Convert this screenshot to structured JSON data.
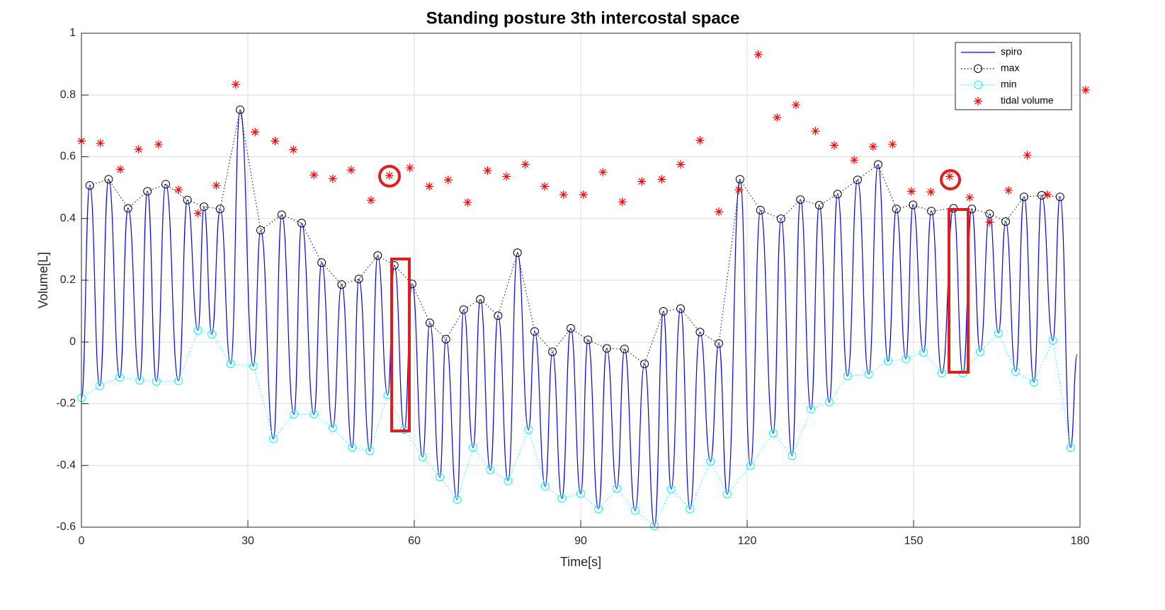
{
  "chart_data": {
    "type": "line",
    "title": "Standing posture 3th intercostal space",
    "xlabel": "Time[s]",
    "ylabel": "Volume[L]",
    "xlim": [
      0,
      180
    ],
    "ylim": [
      -0.6,
      1
    ],
    "xticks": [
      0,
      30,
      60,
      90,
      120,
      150,
      180
    ],
    "yticks": [
      -0.6,
      -0.4,
      -0.2,
      0,
      0.2,
      0.4,
      0.6,
      0.8,
      1
    ],
    "grid": true,
    "legend": "northeast",
    "series": [
      {
        "name": "spiro",
        "color": "#0000ff",
        "line": "solid",
        "marker": "none",
        "x": [
          0.0,
          1.5,
          3.3,
          4.9,
          6.9,
          8.4,
          10.5,
          11.9,
          13.5,
          15.2,
          17.5,
          19.1,
          21.0,
          22.1,
          23.5,
          25.0,
          26.9,
          28.6,
          31.0,
          32.3,
          34.6,
          36.1,
          38.3,
          39.7,
          41.9,
          43.3,
          45.3,
          46.9,
          48.8,
          50.0,
          52.0,
          53.4,
          55.2,
          56.4,
          58.2,
          59.6,
          61.5,
          62.8,
          64.6,
          65.7,
          67.7,
          68.9,
          70.6,
          71.9,
          73.7,
          75.1,
          76.9,
          78.6,
          80.6,
          81.7,
          83.6,
          84.9,
          86.6,
          88.2,
          90.0,
          91.3,
          93.2,
          94.7,
          96.5,
          97.9,
          99.8,
          101.5,
          103.3,
          104.9,
          106.3,
          108.0,
          109.7,
          111.5,
          113.4,
          114.9,
          116.4,
          118.7,
          120.6,
          122.4,
          124.7,
          126.1,
          128.1,
          129.6,
          131.5,
          133.0,
          134.8,
          136.3,
          138.1,
          139.9,
          141.9,
          143.6,
          145.4,
          146.9,
          148.6,
          149.9,
          151.8,
          153.2,
          155.1,
          157.2,
          158.9,
          160.5,
          162.0,
          163.7,
          165.3,
          166.6,
          168.4,
          169.9,
          171.7,
          173.1,
          175.1,
          176.4,
          178.3,
          179.5
        ],
        "values": [
          -0.181,
          0.507,
          -0.142,
          0.527,
          -0.115,
          0.433,
          -0.124,
          0.488,
          -0.128,
          0.511,
          -0.126,
          0.46,
          0.037,
          0.438,
          0.025,
          0.431,
          -0.071,
          0.752,
          -0.078,
          0.362,
          -0.314,
          0.412,
          -0.234,
          0.385,
          -0.234,
          0.257,
          -0.278,
          0.186,
          -0.342,
          0.204,
          -0.353,
          0.28,
          -0.172,
          0.248,
          -0.284,
          0.188,
          -0.373,
          0.062,
          -0.438,
          0.009,
          -0.511,
          0.105,
          -0.342,
          0.138,
          -0.415,
          0.085,
          -0.45,
          0.289,
          -0.284,
          0.034,
          -0.468,
          -0.032,
          -0.507,
          0.044,
          -0.491,
          0.007,
          -0.541,
          -0.021,
          -0.475,
          -0.023,
          -0.546,
          -0.071,
          -0.596,
          0.099,
          -0.477,
          0.108,
          -0.541,
          0.032,
          -0.387,
          -0.005,
          -0.493,
          0.527,
          -0.401,
          0.427,
          -0.296,
          0.399,
          -0.369,
          0.461,
          -0.218,
          0.443,
          -0.195,
          0.479,
          -0.11,
          0.525,
          -0.105,
          0.575,
          -0.062,
          0.431,
          -0.055,
          0.444,
          -0.034,
          0.424,
          -0.101,
          0.433,
          -0.101,
          0.431,
          -0.032,
          0.415,
          0.028,
          0.39,
          -0.096,
          0.47,
          -0.131,
          0.475,
          0.005,
          0.47,
          -0.342,
          -0.04
        ]
      },
      {
        "name": "max",
        "color": "#000000",
        "line": "dotted",
        "marker": "circle",
        "x": [
          1.5,
          4.9,
          8.4,
          11.9,
          15.2,
          19.1,
          22.1,
          25.0,
          28.6,
          32.3,
          36.1,
          39.7,
          43.3,
          46.9,
          50.0,
          53.4,
          56.4,
          59.6,
          62.8,
          65.7,
          68.9,
          71.9,
          75.1,
          78.6,
          81.7,
          84.9,
          88.2,
          91.3,
          94.7,
          97.9,
          101.5,
          104.9,
          108.0,
          111.5,
          114.9,
          118.7,
          122.4,
          126.1,
          129.6,
          133.0,
          136.3,
          139.9,
          143.6,
          146.9,
          149.9,
          153.2,
          157.2,
          160.5,
          163.7,
          166.6,
          169.9,
          173.1,
          176.4
        ],
        "values": [
          0.507,
          0.527,
          0.433,
          0.488,
          0.511,
          0.46,
          0.438,
          0.431,
          0.752,
          0.362,
          0.412,
          0.385,
          0.257,
          0.186,
          0.204,
          0.28,
          0.248,
          0.188,
          0.062,
          0.009,
          0.105,
          0.138,
          0.085,
          0.289,
          0.034,
          -0.032,
          0.044,
          0.007,
          -0.021,
          -0.023,
          -0.071,
          0.099,
          0.108,
          0.032,
          -0.005,
          0.527,
          0.427,
          0.399,
          0.461,
          0.443,
          0.479,
          0.525,
          0.575,
          0.431,
          0.444,
          0.424,
          0.433,
          0.431,
          0.415,
          0.39,
          0.47,
          0.475,
          0.47
        ]
      },
      {
        "name": "min",
        "color": "#00ffff",
        "line": "dotted",
        "marker": "circle",
        "x": [
          0.0,
          3.3,
          6.9,
          10.5,
          13.5,
          17.5,
          21.0,
          23.5,
          26.9,
          31.0,
          34.6,
          38.3,
          41.9,
          45.3,
          48.8,
          52.0,
          55.2,
          58.2,
          61.5,
          64.6,
          67.7,
          70.6,
          73.7,
          76.9,
          80.6,
          83.6,
          86.6,
          90.0,
          93.2,
          96.5,
          99.8,
          103.3,
          106.3,
          109.7,
          113.4,
          116.4,
          120.6,
          124.7,
          128.1,
          131.5,
          134.8,
          138.1,
          141.9,
          145.4,
          148.6,
          151.8,
          155.1,
          158.9,
          162.0,
          165.3,
          168.4,
          171.7,
          175.1,
          178.3
        ],
        "values": [
          -0.181,
          -0.142,
          -0.115,
          -0.124,
          -0.128,
          -0.126,
          0.037,
          0.025,
          -0.071,
          -0.078,
          -0.314,
          -0.234,
          -0.234,
          -0.278,
          -0.342,
          -0.353,
          -0.172,
          -0.284,
          -0.373,
          -0.438,
          -0.511,
          -0.342,
          -0.415,
          -0.45,
          -0.284,
          -0.468,
          -0.507,
          -0.491,
          -0.541,
          -0.475,
          -0.546,
          -0.596,
          -0.477,
          -0.541,
          -0.387,
          -0.493,
          -0.401,
          -0.296,
          -0.369,
          -0.218,
          -0.195,
          -0.11,
          -0.105,
          -0.062,
          -0.055,
          -0.034,
          -0.101,
          -0.101,
          -0.032,
          0.028,
          -0.096,
          -0.131,
          0.005,
          -0.342
        ]
      },
      {
        "name": "tidal volume",
        "color": "#ff0000",
        "line": "none",
        "marker": "star",
        "x": [
          0.0,
          3.4,
          7.0,
          10.3,
          13.9,
          17.5,
          21.0,
          24.3,
          27.8,
          31.3,
          34.9,
          38.2,
          41.9,
          45.3,
          48.6,
          52.2,
          55.5,
          59.2,
          62.7,
          66.1,
          69.6,
          73.2,
          76.6,
          80.0,
          83.5,
          86.9,
          90.5,
          94.0,
          97.5,
          101.0,
          104.6,
          108.0,
          111.5,
          114.9,
          118.5,
          122.0,
          125.4,
          128.8,
          132.3,
          135.7,
          139.3,
          142.7,
          146.2,
          149.6,
          153.1,
          156.5,
          160.1,
          163.7,
          167.1,
          170.5,
          174.1,
          181.0
        ],
        "values": [
          0.651,
          0.644,
          0.559,
          0.624,
          0.64,
          0.493,
          0.417,
          0.507,
          0.834,
          0.68,
          0.651,
          0.623,
          0.541,
          0.529,
          0.557,
          0.459,
          0.539,
          0.564,
          0.504,
          0.525,
          0.452,
          0.555,
          0.536,
          0.575,
          0.504,
          0.477,
          0.477,
          0.55,
          0.454,
          0.52,
          0.527,
          0.575,
          0.653,
          0.422,
          0.493,
          0.931,
          0.727,
          0.768,
          0.683,
          0.637,
          0.589,
          0.633,
          0.64,
          0.488,
          0.486,
          0.536,
          0.468,
          0.388,
          0.491,
          0.605,
          0.477,
          0.816
        ]
      }
    ]
  }
}
